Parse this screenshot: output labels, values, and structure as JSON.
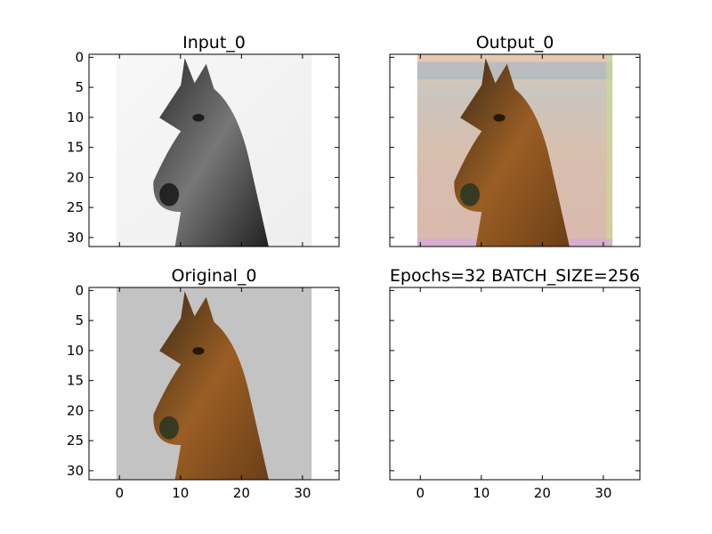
{
  "figure": {
    "background": "#ffffff",
    "suptitle": ""
  },
  "chart_data": [
    {
      "type": "image",
      "title": "Input_0",
      "image": "horse-grayscale-photo",
      "colormap": "gray",
      "xlim": [
        -5,
        36
      ],
      "ylim": [
        31.5,
        -0.5
      ],
      "yticks": [
        0,
        5,
        10,
        15,
        20,
        25,
        30
      ],
      "xticks": [
        0,
        10,
        20,
        30
      ],
      "show_xticklabels": false,
      "show_yticklabels": true
    },
    {
      "type": "image",
      "title": "Output_0",
      "image": "horse-reconstructed-color-photo",
      "xlim": [
        -5,
        36
      ],
      "ylim": [
        31.5,
        -0.5
      ],
      "yticks": [
        0,
        5,
        10,
        15,
        20,
        25,
        30
      ],
      "xticks": [
        0,
        10,
        20,
        30
      ],
      "show_xticklabels": false,
      "show_yticklabels": false
    },
    {
      "type": "image",
      "title": "Original_0",
      "image": "horse-original-color-photo",
      "xlim": [
        -5,
        36
      ],
      "ylim": [
        31.5,
        -0.5
      ],
      "yticks": [
        0,
        5,
        10,
        15,
        20,
        25,
        30
      ],
      "xticks": [
        0,
        10,
        20,
        30
      ],
      "show_xticklabels": true,
      "show_yticklabels": true
    },
    {
      "type": "empty",
      "title": "Epochs=32 BATCH_SIZE=256",
      "xlim": [
        -5,
        36
      ],
      "ylim": [
        31.5,
        -0.5
      ],
      "yticks": [
        0,
        5,
        10,
        15,
        20,
        25,
        30
      ],
      "xticks": [
        0,
        10,
        20,
        30
      ],
      "show_xticklabels": true,
      "show_yticklabels": false
    }
  ]
}
